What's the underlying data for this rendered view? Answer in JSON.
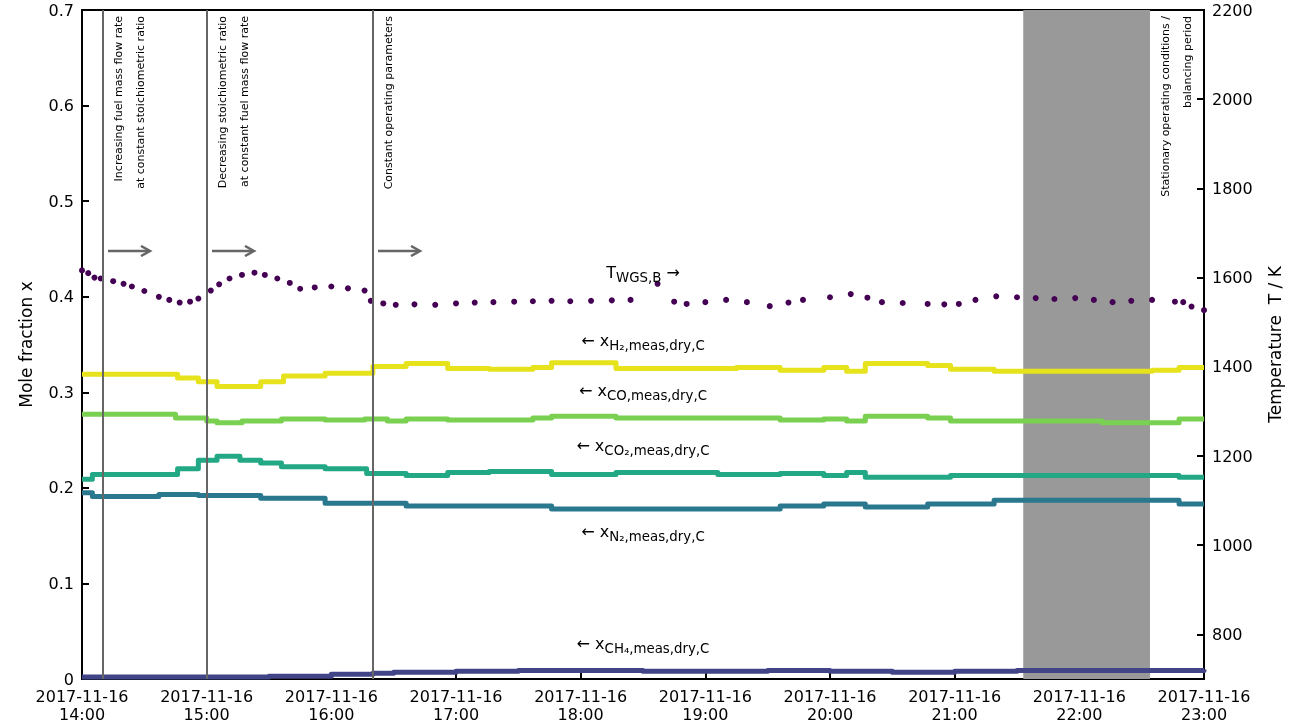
{
  "chart_data": {
    "type": "step",
    "ylabel": "Mole fraction x",
    "y2label": "Temperature  T / K",
    "legend": false,
    "xlim": [
      "2017-11-16T14:00",
      "2017-11-16T23:00"
    ],
    "xticks": [
      {
        "value": "2017-11-16T14:00",
        "label": "2017-11-16\n14:00"
      },
      {
        "value": "2017-11-16T15:00",
        "label": "2017-11-16\n15:00"
      },
      {
        "value": "2017-11-16T16:00",
        "label": "2017-11-16\n16:00"
      },
      {
        "value": "2017-11-16T17:00",
        "label": "2017-11-16\n17:00"
      },
      {
        "value": "2017-11-16T18:00",
        "label": "2017-11-16\n18:00"
      },
      {
        "value": "2017-11-16T19:00",
        "label": "2017-11-16\n19:00"
      },
      {
        "value": "2017-11-16T20:00",
        "label": "2017-11-16\n20:00"
      },
      {
        "value": "2017-11-16T21:00",
        "label": "2017-11-16\n21:00"
      },
      {
        "value": "2017-11-16T22:00",
        "label": "2017-11-16\n22:00"
      },
      {
        "value": "2017-11-16T23:00",
        "label": "2017-11-16\n23:00"
      }
    ],
    "ylim": [
      0,
      0.7
    ],
    "yticks": [
      0,
      0.1,
      0.2,
      0.3,
      0.4,
      0.5,
      0.6,
      0.7
    ],
    "y2lim": [
      700,
      2200
    ],
    "y2ticks": [
      800,
      1000,
      1200,
      1400,
      1600,
      1800,
      2000,
      2200
    ],
    "series": [
      {
        "name": "T$_{WGS,B}$ →",
        "type": "scatter",
        "marker": "circle",
        "axis": "y2",
        "color": "#440154",
        "x": [
          "2017-11-16T14:00",
          "2017-11-16T14:03",
          "2017-11-16T14:06",
          "2017-11-16T14:09",
          "2017-11-16T14:15",
          "2017-11-16T14:20",
          "2017-11-16T14:24",
          "2017-11-16T14:30",
          "2017-11-16T14:37",
          "2017-11-16T14:42",
          "2017-11-16T14:47",
          "2017-11-16T14:52",
          "2017-11-16T14:56",
          "2017-11-16T15:02",
          "2017-11-16T15:06",
          "2017-11-16T15:11",
          "2017-11-16T15:17",
          "2017-11-16T15:23",
          "2017-11-16T15:28",
          "2017-11-16T15:34",
          "2017-11-16T15:40",
          "2017-11-16T15:45",
          "2017-11-16T15:52",
          "2017-11-16T16:00",
          "2017-11-16T16:08",
          "2017-11-16T16:16",
          "2017-11-16T16:19",
          "2017-11-16T16:25",
          "2017-11-16T16:31",
          "2017-11-16T16:40",
          "2017-11-16T16:50",
          "2017-11-16T17:00",
          "2017-11-16T17:09",
          "2017-11-16T17:18",
          "2017-11-16T17:28",
          "2017-11-16T17:37",
          "2017-11-16T17:46",
          "2017-11-16T17:55",
          "2017-11-16T18:05",
          "2017-11-16T18:15",
          "2017-11-16T18:24",
          "2017-11-16T18:37",
          "2017-11-16T18:45",
          "2017-11-16T18:51",
          "2017-11-16T19:00",
          "2017-11-16T19:10",
          "2017-11-16T19:20",
          "2017-11-16T19:31",
          "2017-11-16T19:40",
          "2017-11-16T19:47",
          "2017-11-16T20:00",
          "2017-11-16T20:10",
          "2017-11-16T20:18",
          "2017-11-16T20:25",
          "2017-11-16T20:35",
          "2017-11-16T20:47",
          "2017-11-16T20:55",
          "2017-11-16T21:02",
          "2017-11-16T21:10",
          "2017-11-16T21:20",
          "2017-11-16T21:30",
          "2017-11-16T21:39",
          "2017-11-16T21:48",
          "2017-11-16T21:58",
          "2017-11-16T22:07",
          "2017-11-16T22:16",
          "2017-11-16T22:25",
          "2017-11-16T22:35",
          "2017-11-16T22:46",
          "2017-11-16T22:50",
          "2017-11-16T22:54",
          "2017-11-16T23:00"
        ],
        "values": [
          1616,
          1610,
          1600,
          1598,
          1592,
          1586,
          1580,
          1570,
          1557,
          1550,
          1544,
          1546,
          1553,
          1571,
          1585,
          1598,
          1606,
          1611,
          1606,
          1598,
          1588,
          1575,
          1578,
          1580,
          1576,
          1571,
          1548,
          1542,
          1539,
          1540,
          1539,
          1542,
          1544,
          1545,
          1546,
          1547,
          1548,
          1547,
          1548,
          1549,
          1550,
          1586,
          1546,
          1541,
          1545,
          1550,
          1545,
          1536,
          1544,
          1550,
          1556,
          1563,
          1555,
          1545,
          1543,
          1541,
          1540,
          1541,
          1550,
          1558,
          1556,
          1554,
          1552,
          1554,
          1550,
          1545,
          1548,
          1550,
          1546,
          1545,
          1535,
          1527
        ]
      },
      {
        "name": "← x$_{H₂,meas,dry,C}$",
        "color": "#e6e31c",
        "x": [
          "2017-11-16T14:00",
          "2017-11-16T14:46",
          "2017-11-16T14:56",
          "2017-11-16T15:05",
          "2017-11-16T15:26",
          "2017-11-16T15:37",
          "2017-11-16T15:57",
          "2017-11-16T16:20",
          "2017-11-16T16:36",
          "2017-11-16T16:56",
          "2017-11-16T17:16",
          "2017-11-16T17:37",
          "2017-11-16T17:46",
          "2017-11-16T18:17",
          "2017-11-16T19:15",
          "2017-11-16T19:36",
          "2017-11-16T19:57",
          "2017-11-16T20:08",
          "2017-11-16T20:17",
          "2017-11-16T20:47",
          "2017-11-16T20:58",
          "2017-11-16T21:19",
          "2017-11-16T22:35",
          "2017-11-16T22:48",
          "2017-11-16T23:00"
        ],
        "values": [
          0.319,
          0.315,
          0.311,
          0.306,
          0.311,
          0.317,
          0.32,
          0.327,
          0.33,
          0.325,
          0.324,
          0.326,
          0.331,
          0.325,
          0.326,
          0.323,
          0.326,
          0.322,
          0.33,
          0.328,
          0.324,
          0.322,
          0.323,
          0.326,
          0.326
        ]
      },
      {
        "name": "← x$_{CO,meas,dry,C}$",
        "color": "#7ad151",
        "x": [
          "2017-11-16T14:00",
          "2017-11-16T14:45",
          "2017-11-16T15:00",
          "2017-11-16T15:05",
          "2017-11-16T15:17",
          "2017-11-16T15:36",
          "2017-11-16T15:57",
          "2017-11-16T16:16",
          "2017-11-16T16:27",
          "2017-11-16T16:36",
          "2017-11-16T16:56",
          "2017-11-16T17:37",
          "2017-11-16T17:46",
          "2017-11-16T18:17",
          "2017-11-16T19:36",
          "2017-11-16T19:57",
          "2017-11-16T20:08",
          "2017-11-16T20:17",
          "2017-11-16T20:47",
          "2017-11-16T20:58",
          "2017-11-16T21:19",
          "2017-11-16T22:11",
          "2017-11-16T22:48",
          "2017-11-16T23:00"
        ],
        "values": [
          0.277,
          0.273,
          0.27,
          0.268,
          0.27,
          0.272,
          0.271,
          0.272,
          0.27,
          0.272,
          0.271,
          0.273,
          0.275,
          0.273,
          0.271,
          0.272,
          0.27,
          0.275,
          0.273,
          0.27,
          0.27,
          0.268,
          0.272,
          0.272
        ]
      },
      {
        "name": "← x$_{CO₂,meas,dry,C}$",
        "color": "#22a884",
        "x": [
          "2017-11-16T14:00",
          "2017-11-16T14:05",
          "2017-11-16T14:46",
          "2017-11-16T14:56",
          "2017-11-16T15:05",
          "2017-11-16T15:16",
          "2017-11-16T15:26",
          "2017-11-16T15:36",
          "2017-11-16T15:57",
          "2017-11-16T16:17",
          "2017-11-16T16:36",
          "2017-11-16T16:56",
          "2017-11-16T17:16",
          "2017-11-16T17:46",
          "2017-11-16T18:17",
          "2017-11-16T19:06",
          "2017-11-16T19:36",
          "2017-11-16T19:57",
          "2017-11-16T20:08",
          "2017-11-16T20:17",
          "2017-11-16T20:58",
          "2017-11-16T22:48",
          "2017-11-16T23:00"
        ],
        "values": [
          0.209,
          0.214,
          0.22,
          0.229,
          0.233,
          0.229,
          0.226,
          0.222,
          0.22,
          0.215,
          0.213,
          0.216,
          0.217,
          0.214,
          0.216,
          0.214,
          0.215,
          0.213,
          0.216,
          0.211,
          0.213,
          0.211,
          0.211
        ]
      },
      {
        "name": "← x$_{N₂,meas,dry,C}$",
        "color": "#2a788e",
        "x": [
          "2017-11-16T14:00",
          "2017-11-16T14:05",
          "2017-11-16T14:37",
          "2017-11-16T14:56",
          "2017-11-16T15:26",
          "2017-11-16T15:57",
          "2017-11-16T16:36",
          "2017-11-16T17:46",
          "2017-11-16T19:36",
          "2017-11-16T19:57",
          "2017-11-16T20:17",
          "2017-11-16T20:47",
          "2017-11-16T21:19",
          "2017-11-16T22:48",
          "2017-11-16T23:00"
        ],
        "values": [
          0.195,
          0.191,
          0.193,
          0.192,
          0.189,
          0.184,
          0.181,
          0.178,
          0.181,
          0.183,
          0.18,
          0.183,
          0.187,
          0.183,
          0.183
        ]
      },
      {
        "name": "← x$_{CH₄,meas,dry,C}$",
        "color": "#414487",
        "x": [
          "2017-11-16T14:00",
          "2017-11-16T15:00",
          "2017-11-16T15:30",
          "2017-11-16T16:00",
          "2017-11-16T16:20",
          "2017-11-16T16:30",
          "2017-11-16T17:00",
          "2017-11-16T17:30",
          "2017-11-16T18:00",
          "2017-11-16T18:30",
          "2017-11-16T19:00",
          "2017-11-16T19:30",
          "2017-11-16T20:00",
          "2017-11-16T20:30",
          "2017-11-16T21:00",
          "2017-11-16T21:30",
          "2017-11-16T22:00",
          "2017-11-16T22:30",
          "2017-11-16T23:00"
        ],
        "values": [
          0.002,
          0.002,
          0.003,
          0.005,
          0.006,
          0.007,
          0.008,
          0.009,
          0.009,
          0.008,
          0.008,
          0.009,
          0.008,
          0.007,
          0.008,
          0.009,
          0.009,
          0.009,
          0.01
        ]
      }
    ],
    "ref_lines": [
      {
        "axis": "x",
        "value": "2017-11-16T14:10",
        "label": "Increasing fuel mass flow rate\nat constant stoichiometric ratio",
        "color": "#666666"
      },
      {
        "axis": "x",
        "value": "2017-11-16T15:00",
        "label": "Decreasing stoichiometric ratio\nat constant fuel mass flow rate",
        "color": "#666666"
      },
      {
        "axis": "x",
        "value": "2017-11-16T16:20",
        "label": "Constant operating parameters",
        "color": "#666666"
      }
    ],
    "bands": [
      {
        "axis": "x",
        "from": "2017-11-16T21:33",
        "to": "2017-11-16T22:34",
        "label": "Stationary operating conditions /\nbalancing period",
        "color": "#999999"
      }
    ]
  }
}
